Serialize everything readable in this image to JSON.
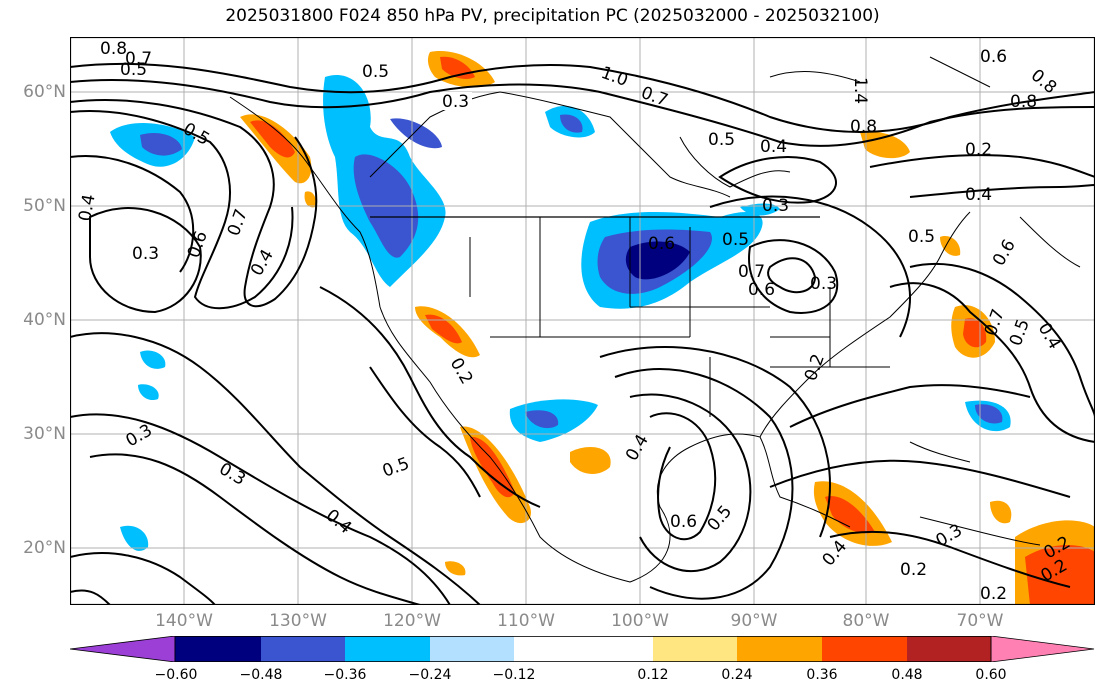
{
  "title": "2025031800 F024 850 hPa PV, precipitation PC (2025032000 - 2025032100)",
  "lat_labels": [
    "60°N",
    "50°N",
    "40°N",
    "30°N",
    "20°N"
  ],
  "lon_labels": [
    "140°W",
    "130°W",
    "120°W",
    "110°W",
    "100°W",
    "90°W",
    "80°W",
    "70°W"
  ],
  "colorbar": {
    "tick_labels": [
      "−0.60",
      "−0.48",
      "−0.36",
      "−0.24",
      "−0.12",
      "0.12",
      "0.24",
      "0.36",
      "0.48",
      "0.60"
    ],
    "colors": [
      "#9b3fd6",
      "#00007f",
      "#3a55cf",
      "#00bfff",
      "#b3e0ff",
      "#ffffff",
      "#ffe680",
      "#ffa500",
      "#ff4500",
      "#b22222",
      "#ff80b3"
    ]
  },
  "contour_labels": [
    "0.8",
    "0.7",
    "0.5",
    "0.5",
    "0.3",
    "1.0",
    "0.7",
    "0.5",
    "0.4",
    "1.4",
    "0.8",
    "0.6",
    "0.8",
    "0.8",
    "0.2",
    "0.4",
    "0.5",
    "0.4",
    "0.3",
    "0.6",
    "0.7",
    "0.4",
    "0.6",
    "0.3",
    "0.5",
    "0.7",
    "0.6",
    "0.5",
    "0.6",
    "0.7",
    "0.5",
    "0.4",
    "0.2",
    "0.3",
    "0.3",
    "0.5",
    "0.4",
    "0.4",
    "0.6",
    "0.5",
    "0.2",
    "0.4",
    "0.3",
    "0.2",
    "0.2",
    "0.2",
    "0.2",
    "0.3"
  ]
}
